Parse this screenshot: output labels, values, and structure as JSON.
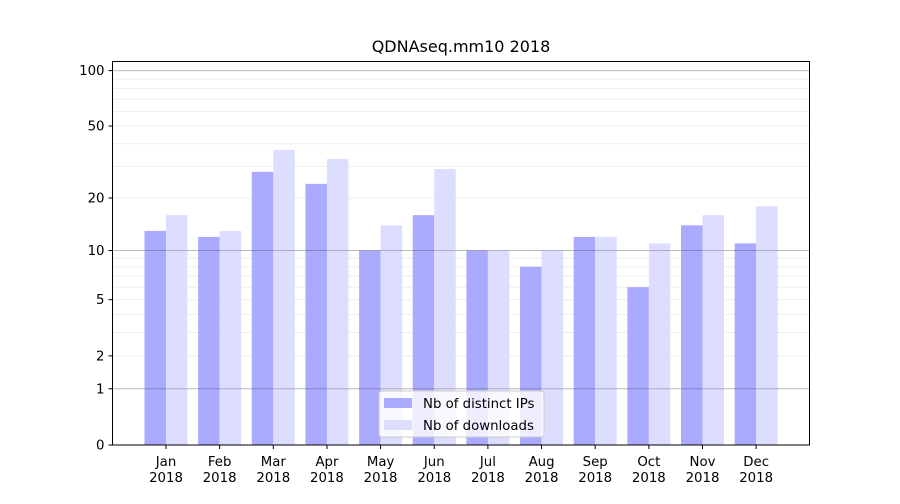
{
  "chart_data": {
    "type": "bar",
    "title": "QDNAseq.mm10 2018",
    "xlabel": "",
    "ylabel": "",
    "yscale": "log(1+x)",
    "ylim": [
      0,
      112
    ],
    "yticks": [
      0,
      1,
      2,
      5,
      10,
      20,
      50,
      100
    ],
    "ytick_labels": [
      "0",
      "1",
      "2",
      "5",
      "10",
      "20",
      "50",
      "100"
    ],
    "categories": [
      [
        "Jan",
        "2018"
      ],
      [
        "Feb",
        "2018"
      ],
      [
        "Mar",
        "2018"
      ],
      [
        "Apr",
        "2018"
      ],
      [
        "May",
        "2018"
      ],
      [
        "Jun",
        "2018"
      ],
      [
        "Jul",
        "2018"
      ],
      [
        "Aug",
        "2018"
      ],
      [
        "Sep",
        "2018"
      ],
      [
        "Oct",
        "2018"
      ],
      [
        "Nov",
        "2018"
      ],
      [
        "Dec",
        "2018"
      ]
    ],
    "series": [
      {
        "name": "Nb of distinct IPs",
        "color": "#aaaaff",
        "values": [
          13,
          12,
          28,
          24,
          10,
          16,
          10,
          8,
          12,
          6,
          14,
          11
        ]
      },
      {
        "name": "Nb of downloads",
        "color": "#ddddff",
        "values": [
          16,
          13,
          37,
          33,
          14,
          29,
          10,
          10,
          12,
          11,
          16,
          18
        ]
      }
    ],
    "grid": true,
    "legend": "lower-center"
  }
}
